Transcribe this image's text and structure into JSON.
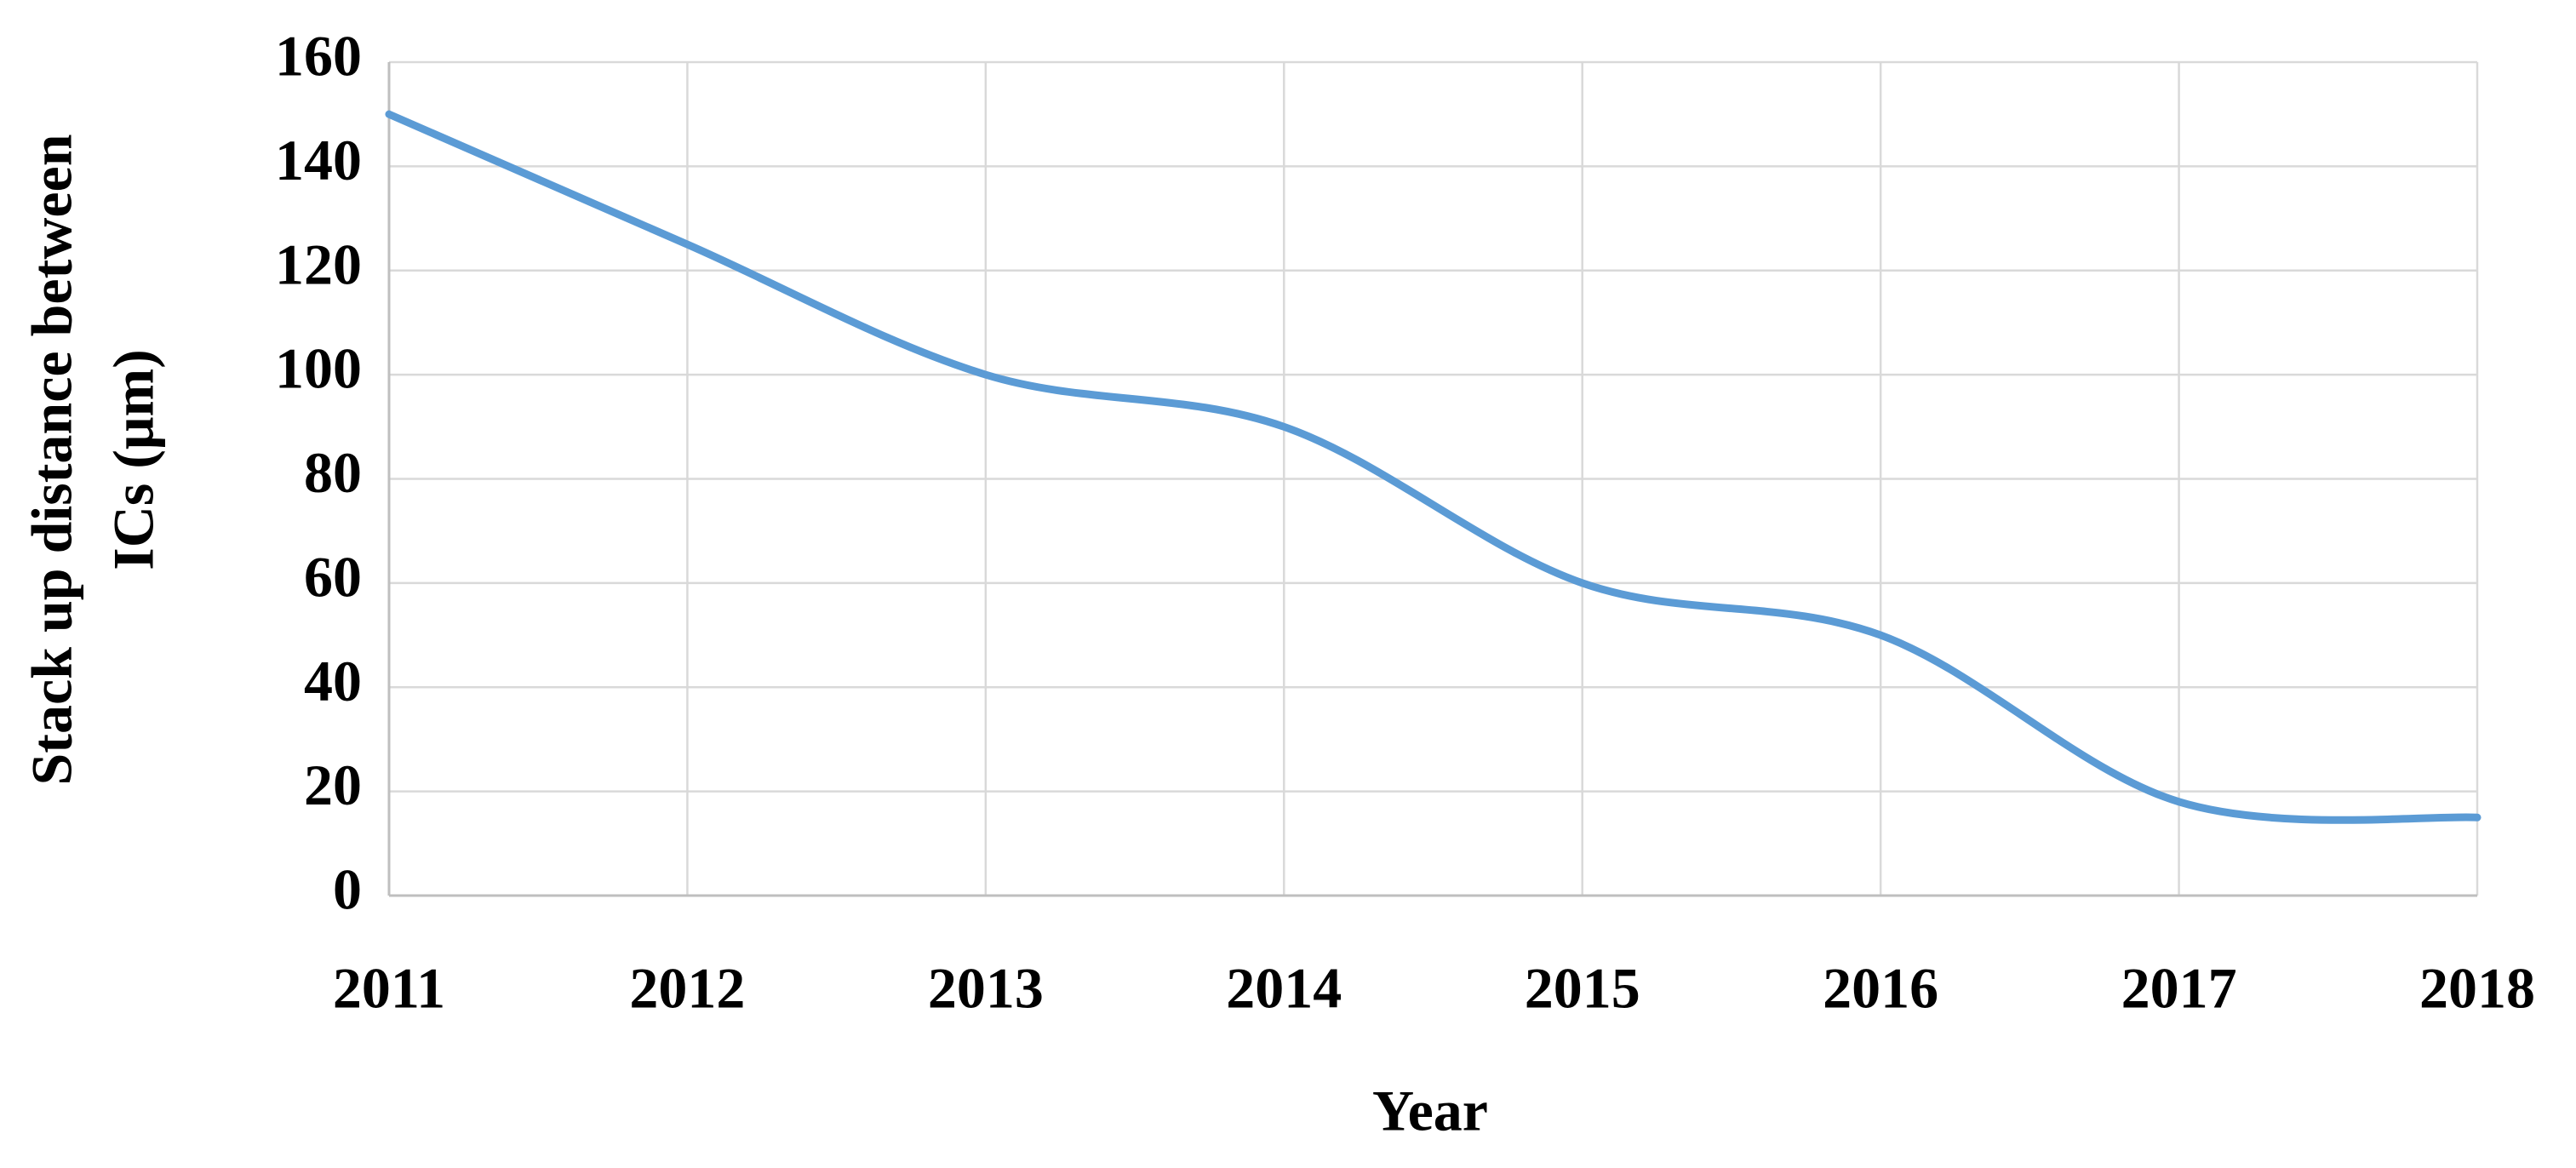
{
  "chart_data": {
    "type": "line",
    "x": [
      2011,
      2012,
      2013,
      2014,
      2015,
      2016,
      2017,
      2018
    ],
    "series": [
      {
        "name": "Stack up distance",
        "color": "#5b9bd5",
        "values": [
          150,
          125,
          100,
          90,
          60,
          50,
          18,
          15
        ]
      }
    ],
    "xlim": [
      2011,
      2018
    ],
    "xticks": [
      2011,
      2012,
      2013,
      2014,
      2015,
      2016,
      2017,
      2018
    ],
    "ylim": [
      0,
      160
    ],
    "yticks": [
      0,
      20,
      40,
      60,
      80,
      100,
      120,
      140,
      160
    ],
    "xlabel": "Year",
    "ylabel": [
      "Stack up distance between",
      "ICs (μm)"
    ],
    "grid": true,
    "smooth": true
  }
}
